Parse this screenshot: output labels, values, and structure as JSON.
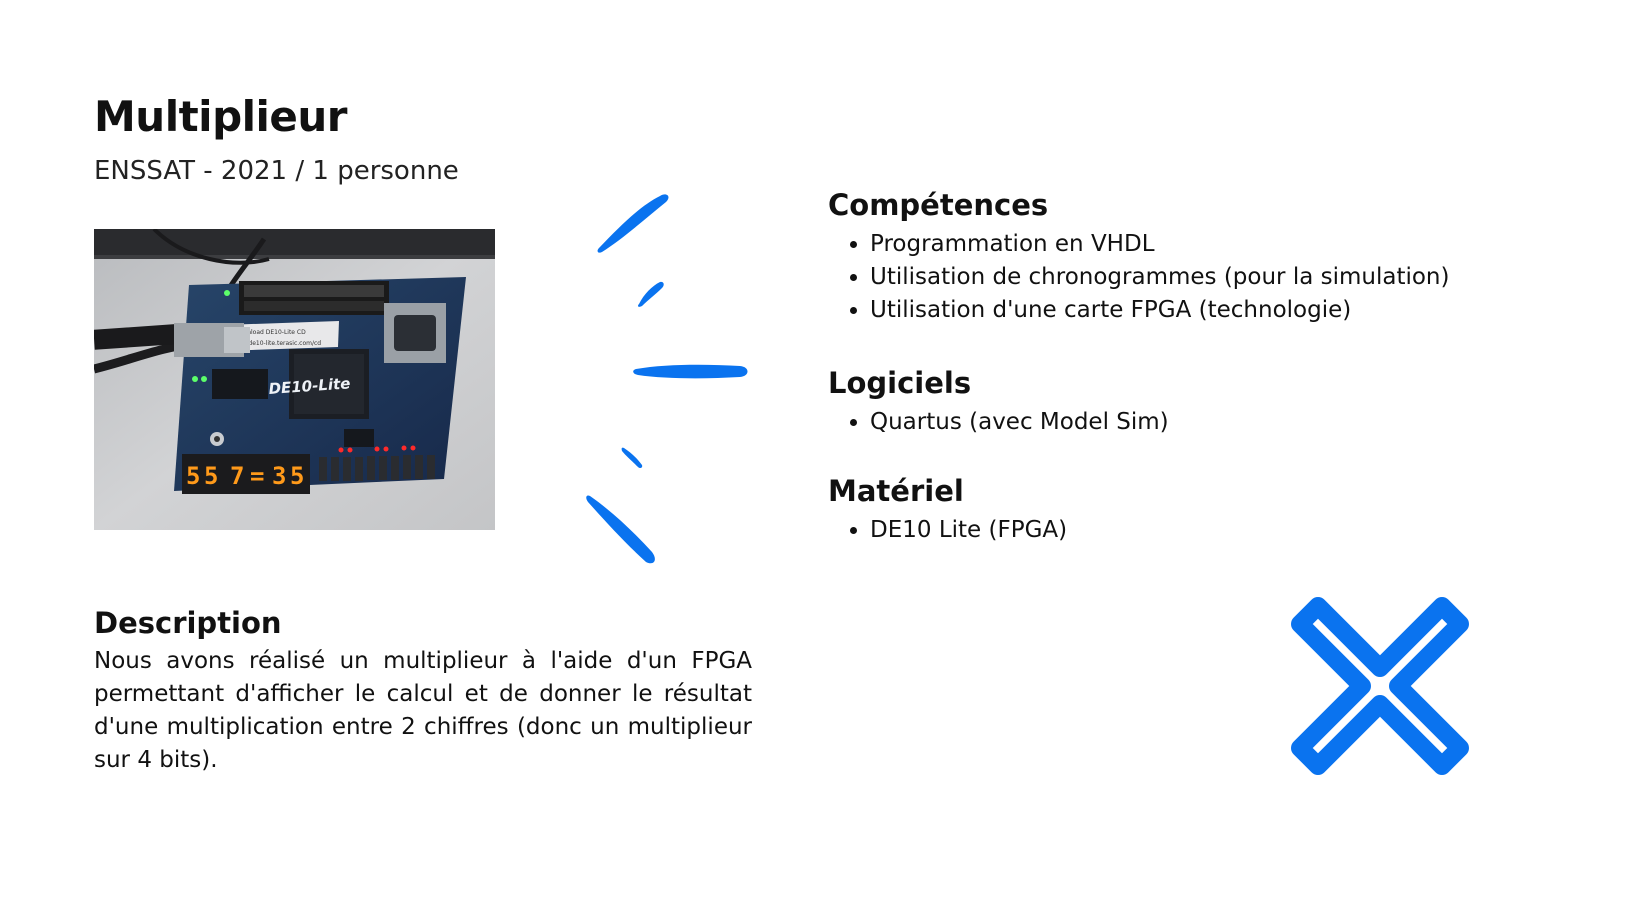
{
  "header": {
    "title": "Multiplieur",
    "subtitle": "ENSSAT - 2021 / 1 personne"
  },
  "photo": {
    "board_label": "DE10-Lite",
    "board_sticker_line1": "Download DE10-Lite CD",
    "board_sticker_line2": "http://de10-lite.terasic.com/cd",
    "display_digits": [
      "5",
      "5",
      "7",
      "=",
      "3",
      "5"
    ]
  },
  "competences": {
    "heading": "Compétences",
    "items": [
      "Programmation en VHDL",
      "Utilisation de chronogrammes (pour la simulation)",
      "Utilisation d'une carte FPGA (technologie)"
    ]
  },
  "logiciels": {
    "heading": "Logiciels",
    "items": [
      "Quartus (avec Model Sim)"
    ]
  },
  "materiel": {
    "heading": "Matériel",
    "items": [
      "DE10 Lite (FPGA)"
    ]
  },
  "description": {
    "heading": "Description",
    "text": "Nous avons réalisé un multiplieur à l'aide d'un FPGA permettant d'afficher le calcul et de donner le résultat d'une multiplication entre 2 chiffres (donc un multiplieur sur 4 bits)."
  },
  "colors": {
    "accent": "#0a73ef",
    "board_blue": "#1d3556",
    "digit_orange": "#ff9a1a"
  },
  "icons": {
    "decor_strokes": "sunburst-strokes-icon",
    "decor_cross": "multiply-cross-icon"
  }
}
